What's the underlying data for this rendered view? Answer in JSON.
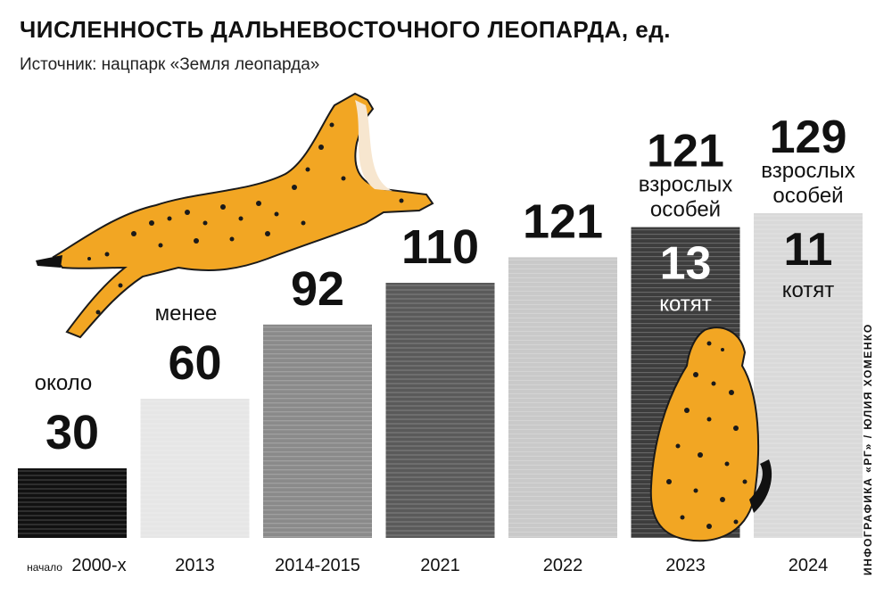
{
  "header": {
    "title": "ЧИСЛЕННОСТЬ ДАЛЬНЕВОСТОЧНОГО ЛЕОПАРДА, ед.",
    "subtitle": "Источник: нацпарк «Земля леопарда»"
  },
  "credit": "ИНФОГРАФИКА «РГ» / ЮЛИЯ ХОМЕНКО",
  "chart_data": {
    "type": "bar",
    "title": "ЧИСЛЕННОСТЬ ДАЛЬНЕВОСТОЧНОГО ЛЕОПАРДА, ед.",
    "categories": [
      "2000-х",
      "2013",
      "2014-2015",
      "2021",
      "2022",
      "2023",
      "2024"
    ],
    "category_prefixes": [
      "начало",
      "",
      "",
      "",
      "",
      "",
      ""
    ],
    "values": [
      30,
      60,
      92,
      110,
      121,
      134,
      140
    ],
    "bars": [
      {
        "category": "2000-х",
        "prefix": "начало",
        "value_label": "30",
        "pre_label": "около"
      },
      {
        "category": "2013",
        "value_label": "60",
        "pre_label": "менее"
      },
      {
        "category": "2014-2015",
        "value_label": "92"
      },
      {
        "category": "2021",
        "value_label": "110"
      },
      {
        "category": "2022",
        "value_label": "121"
      },
      {
        "category": "2023",
        "adults": 121,
        "kittens": 13,
        "adults_label": "121",
        "adults_caption": "взрослых особей",
        "kittens_label": "13",
        "kittens_caption": "котят"
      },
      {
        "category": "2024",
        "adults": 129,
        "kittens": 11,
        "adults_label": "129",
        "adults_caption": "взрослых особей",
        "kittens_label": "11",
        "kittens_caption": "котят"
      }
    ],
    "colors": [
      "#111111",
      "#e6e6e6",
      "#8a8a8a",
      "#5a5a5a",
      "#c9c9c9",
      "#3d3d3d",
      "#d9d9d9"
    ],
    "xlabel": "",
    "ylabel": "",
    "grid": false,
    "legend": "none"
  }
}
